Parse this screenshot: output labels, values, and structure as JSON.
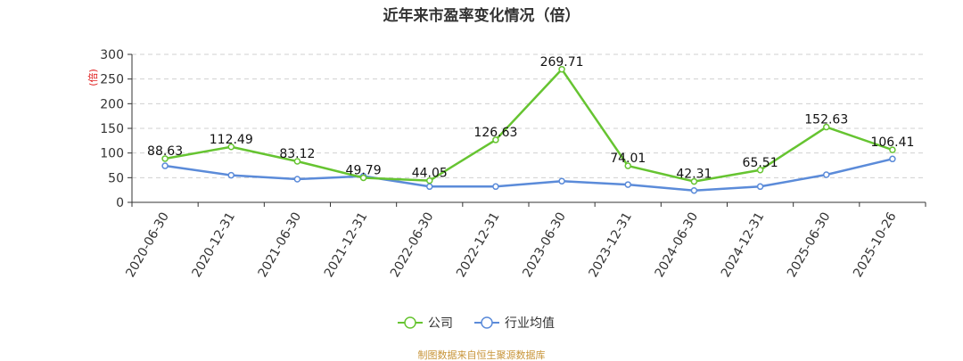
{
  "chart_data": {
    "type": "line",
    "title": "近年来市盈率变化情况（倍）",
    "ylabel": "(倍)",
    "ylim": [
      0,
      300
    ],
    "yticks": [
      0,
      50,
      100,
      150,
      200,
      250,
      300
    ],
    "grid": true,
    "legend_position": "bottom-center",
    "categories": [
      "2020-06-30",
      "2020-12-31",
      "2021-06-30",
      "2021-12-31",
      "2022-06-30",
      "2022-12-31",
      "2023-06-30",
      "2023-12-31",
      "2024-06-30",
      "2024-12-31",
      "2025-06-30",
      "2025-10-26"
    ],
    "series": [
      {
        "name": "公司",
        "color": "#66c431",
        "values": [
          88.63,
          112.49,
          83.12,
          49.79,
          44.05,
          126.63,
          269.71,
          74.01,
          42.31,
          65.51,
          152.63,
          106.41
        ],
        "labels": [
          "88.63",
          "112.49",
          "83.12",
          "49.79",
          "44.05",
          "126.63",
          "269.71",
          "74.01",
          "42.31",
          "65.51",
          "152.63",
          "106.41"
        ]
      },
      {
        "name": "行业均值",
        "color": "#5b8bd9",
        "values": [
          74,
          55,
          47,
          53,
          32,
          32,
          43,
          36,
          24,
          32,
          56,
          88
        ]
      }
    ]
  },
  "footer": {
    "source": "制图数据来自恒生聚源数据库"
  }
}
